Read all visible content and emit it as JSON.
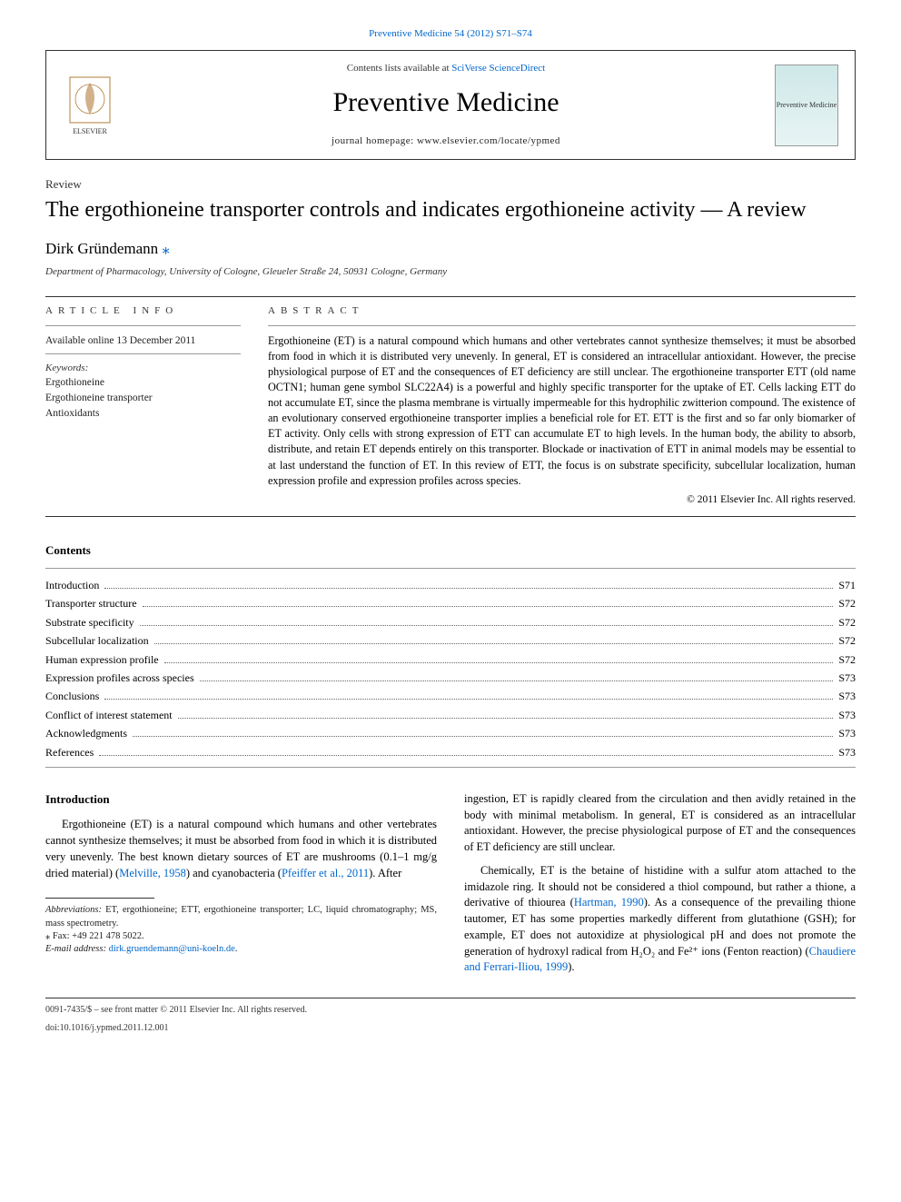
{
  "journal_link": {
    "text": "Preventive Medicine 54 (2012) S71–S74",
    "color": "#0066cc"
  },
  "header": {
    "contents_prefix": "Contents lists available at ",
    "contents_link": "SciVerse ScienceDirect",
    "journal_title": "Preventive Medicine",
    "homepage": "journal homepage: www.elsevier.com/locate/ypmed",
    "cover_label": "Preventive Medicine",
    "cover_colors": {
      "top": "#cfe8e8",
      "bottom": "#e8f4f4"
    },
    "elsevier_alt": "ELSEVIER"
  },
  "article_type": "Review",
  "title": "The ergothioneine transporter controls and indicates ergothioneine activity — A review",
  "author": {
    "name": "Dirk Gründemann",
    "corr_symbol": "⁎"
  },
  "affiliation": "Department of Pharmacology, University of Cologne, Gleueler Straße 24, 50931 Cologne, Germany",
  "info": {
    "head": "ARTICLE INFO",
    "available": "Available online 13 December 2011",
    "keywords_head": "Keywords:",
    "keywords": [
      "Ergothioneine",
      "Ergothioneine transporter",
      "Antioxidants"
    ]
  },
  "abstract": {
    "head": "ABSTRACT",
    "text": "Ergothioneine (ET) is a natural compound which humans and other vertebrates cannot synthesize themselves; it must be absorbed from food in which it is distributed very unevenly. In general, ET is considered an intracellular antioxidant. However, the precise physiological purpose of ET and the consequences of ET deficiency are still unclear. The ergothioneine transporter ETT (old name OCTN1; human gene symbol SLC22A4) is a powerful and highly specific transporter for the uptake of ET. Cells lacking ETT do not accumulate ET, since the plasma membrane is virtually impermeable for this hydrophilic zwitterion compound. The existence of an evolutionary conserved ergothioneine transporter implies a beneficial role for ET. ETT is the first and so far only biomarker of ET activity. Only cells with strong expression of ETT can accumulate ET to high levels. In the human body, the ability to absorb, distribute, and retain ET depends entirely on this transporter. Blockade or inactivation of ETT in animal models may be essential to at last understand the function of ET. In this review of ETT, the focus is on substrate specificity, subcellular localization, human expression profile and expression profiles across species.",
    "copyright": "© 2011 Elsevier Inc. All rights reserved."
  },
  "contents": {
    "head": "Contents",
    "items": [
      {
        "label": "Introduction",
        "page": "S71"
      },
      {
        "label": "Transporter structure",
        "page": "S72"
      },
      {
        "label": "Substrate specificity",
        "page": "S72"
      },
      {
        "label": "Subcellular localization",
        "page": "S72"
      },
      {
        "label": "Human expression profile",
        "page": "S72"
      },
      {
        "label": "Expression profiles across species",
        "page": "S73"
      },
      {
        "label": "Conclusions",
        "page": "S73"
      },
      {
        "label": "Conflict of interest statement",
        "page": "S73"
      },
      {
        "label": "Acknowledgments",
        "page": "S73"
      },
      {
        "label": "References",
        "page": "S73"
      }
    ]
  },
  "body": {
    "intro_head": "Introduction",
    "intro_p1_pre": "Ergothioneine (ET) is a natural compound which humans and other vertebrates cannot synthesize themselves; it must be absorbed from food in which it is distributed very unevenly. The best known dietary sources of ET are mushrooms (0.1–1 mg/g dried material) (",
    "intro_ref1": "Melville, 1958",
    "intro_p1_mid": ") and cyanobacteria (",
    "intro_ref2": "Pfeiffer et al., 2011",
    "intro_p1_post": "). After",
    "intro_p2": "ingestion, ET is rapidly cleared from the circulation and then avidly retained in the body with minimal metabolism. In general, ET is considered as an intracellular antioxidant. However, the precise physiological purpose of ET and the consequences of ET deficiency are still unclear.",
    "intro_p3_pre": "Chemically, ET is the betaine of histidine with a sulfur atom attached to the imidazole ring. It should not be considered a thiol compound, but rather a thione, a derivative of thiourea (",
    "intro_ref3": "Hartman, 1990",
    "intro_p3_mid": "). As a consequence of the prevailing thione tautomer, ET has some properties markedly different from glutathione (GSH); for example, ET does not autoxidize at physiological pH and does not promote the generation of hydroxyl radical from H₂O₂ and Fe²⁺ ions (Fenton reaction) (",
    "intro_ref4": "Chaudiere and Ferrari-Iliou, 1999",
    "intro_p3_post": ")."
  },
  "footnotes": {
    "abbrev_label": "Abbreviations:",
    "abbrev": " ET, ergothioneine; ETT, ergothioneine transporter; LC, liquid chromatography; MS, mass spectrometry.",
    "fax": "⁎ Fax: +49 221 478 5022.",
    "email_label": "E-mail address: ",
    "email": "dirk.gruendemann@uni-koeln.de",
    "email_post": "."
  },
  "bottom": {
    "issn": "0091-7435/$ – see front matter © 2011 Elsevier Inc. All rights reserved.",
    "doi_label": "doi:",
    "doi": "10.1016/j.ypmed.2011.12.001"
  },
  "colors": {
    "link": "#0066cc",
    "text": "#000000",
    "rule": "#333333",
    "light_rule": "#999999"
  }
}
